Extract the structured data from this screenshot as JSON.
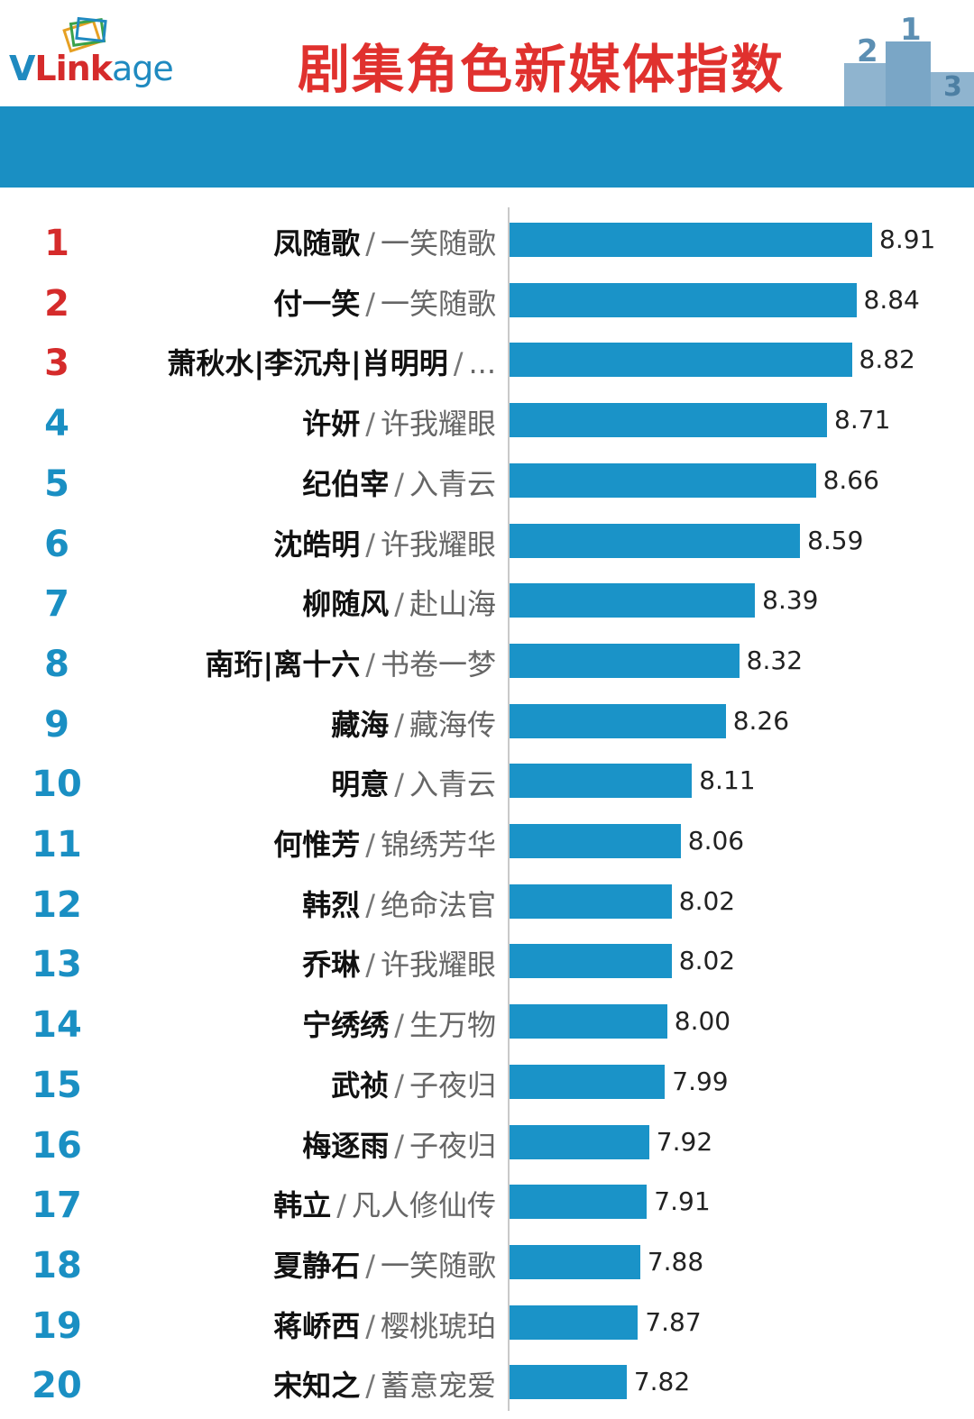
{
  "header": {
    "logo_text_v": "V",
    "logo_text_link": "Link",
    "logo_text_age": "age",
    "title": "剧集角色新媒体指数",
    "podium_icon": "podium-icon"
  },
  "colors": {
    "bar": "#1a93c8",
    "band": "#1a8fc3",
    "title": "#e0312e",
    "rank_top3": "#d52b2b",
    "rank_other": "#1a8fc3"
  },
  "chart_data": {
    "type": "bar",
    "orientation": "horizontal",
    "title": "剧集角色新媒体指数",
    "xlim": [
      0,
      8.91
    ],
    "rows": [
      {
        "rank": "1",
        "name": "凤随歌",
        "show": "一笑随歌",
        "value": 8.91
      },
      {
        "rank": "2",
        "name": "付一笑",
        "show": "一笑随歌",
        "value": 8.84
      },
      {
        "rank": "3",
        "name": "萧秋水|李沉舟|肖明明",
        "show": "...",
        "value": 8.82
      },
      {
        "rank": "4",
        "name": "许妍",
        "show": "许我耀眼",
        "value": 8.71
      },
      {
        "rank": "5",
        "name": "纪伯宰",
        "show": "入青云",
        "value": 8.66
      },
      {
        "rank": "6",
        "name": "沈皓明",
        "show": "许我耀眼",
        "value": 8.59
      },
      {
        "rank": "7",
        "name": "柳随风",
        "show": "赴山海",
        "value": 8.39
      },
      {
        "rank": "8",
        "name": "南珩|离十六",
        "show": "书卷一梦",
        "value": 8.32
      },
      {
        "rank": "9",
        "name": "藏海",
        "show": "藏海传",
        "value": 8.26
      },
      {
        "rank": "10",
        "name": "明意",
        "show": "入青云",
        "value": 8.11
      },
      {
        "rank": "11",
        "name": "何惟芳",
        "show": "锦绣芳华",
        "value": 8.06
      },
      {
        "rank": "12",
        "name": "韩烈",
        "show": "绝命法官",
        "value": 8.02
      },
      {
        "rank": "13",
        "name": "乔琳",
        "show": "许我耀眼",
        "value": 8.02
      },
      {
        "rank": "14",
        "name": "宁绣绣",
        "show": "生万物",
        "value": 8.0
      },
      {
        "rank": "15",
        "name": "武祯",
        "show": "子夜归",
        "value": 7.99
      },
      {
        "rank": "16",
        "name": "梅逐雨",
        "show": "子夜归",
        "value": 7.92
      },
      {
        "rank": "17",
        "name": "韩立",
        "show": "凡人修仙传",
        "value": 7.91
      },
      {
        "rank": "18",
        "name": "夏静石",
        "show": "一笑随歌",
        "value": 7.88
      },
      {
        "rank": "19",
        "name": "蒋峤西",
        "show": "樱桃琥珀",
        "value": 7.87
      },
      {
        "rank": "20",
        "name": "宋知之",
        "show": "蓄意宠爱",
        "value": 7.82
      }
    ],
    "value_labels": [
      "8.91",
      "8.84",
      "8.82",
      "8.71",
      "8.66",
      "8.59",
      "8.39",
      "8.32",
      "8.26",
      "8.11",
      "8.06",
      "8.02",
      "8.02",
      "8.00",
      "7.99",
      "7.92",
      "7.91",
      "7.88",
      "7.87",
      "7.82"
    ]
  }
}
